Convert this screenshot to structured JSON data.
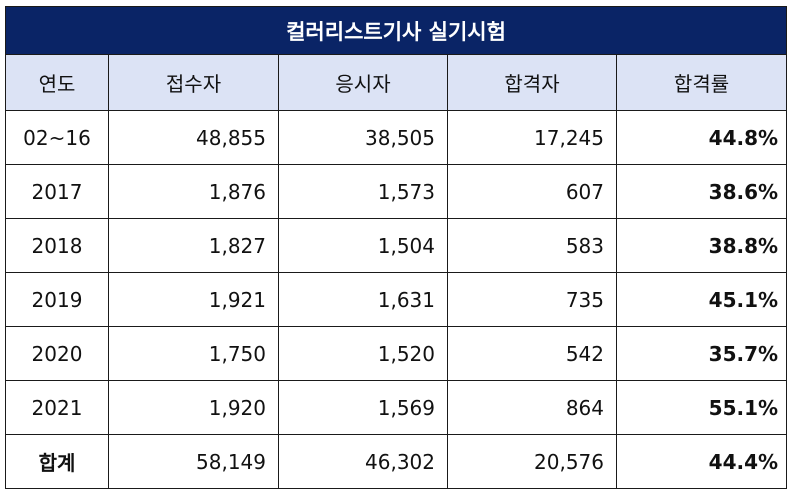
{
  "title": "컬러리스트기사 실기시험",
  "headers": [
    "연도",
    "접수자",
    "응시자",
    "합격자",
    "합격률"
  ],
  "rows": [
    [
      "02~16",
      "48,855",
      "38,505",
      "17,245",
      "44.8%"
    ],
    [
      "2017",
      "1,876",
      "1,573",
      "607",
      "38.6%"
    ],
    [
      "2018",
      "1,827",
      "1,504",
      "583",
      "38.8%"
    ],
    [
      "2019",
      "1,921",
      "1,631",
      "735",
      "45.1%"
    ],
    [
      "2020",
      "1,750",
      "1,520",
      "542",
      "35.7%"
    ],
    [
      "2021",
      "1,920",
      "1,569",
      "864",
      "55.1%"
    ]
  ],
  "total": [
    "합계",
    "58,149",
    "46,302",
    "20,576",
    "44.4%"
  ],
  "colors": {
    "title_bg": "#0a2466",
    "header_bg": "#dce3f5"
  }
}
